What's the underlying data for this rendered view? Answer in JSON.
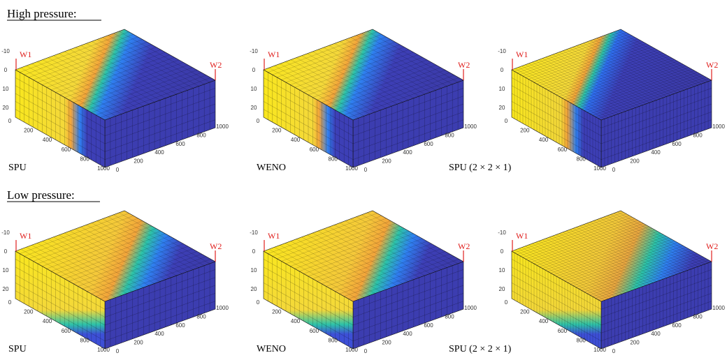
{
  "sections": [
    {
      "title": "High pressure:",
      "panels": [
        {
          "label": "SPU"
        },
        {
          "label": "WENO"
        },
        {
          "label": "SPU (2 × 2 × 1)"
        }
      ]
    },
    {
      "title": "Low pressure:",
      "panels": [
        {
          "label": "SPU"
        },
        {
          "label": "WENO"
        },
        {
          "label": "SPU (2 × 2 × 1)"
        }
      ]
    }
  ],
  "axes": {
    "z_ticks": [
      "-10",
      "0",
      "10",
      "20"
    ],
    "x_ticks": [
      "0",
      "200",
      "400",
      "600",
      "800",
      "1000"
    ],
    "y_ticks": [
      "0",
      "200",
      "400",
      "600",
      "800",
      "1000"
    ]
  },
  "wells": {
    "w1": "W1",
    "w2": "W2"
  }
}
